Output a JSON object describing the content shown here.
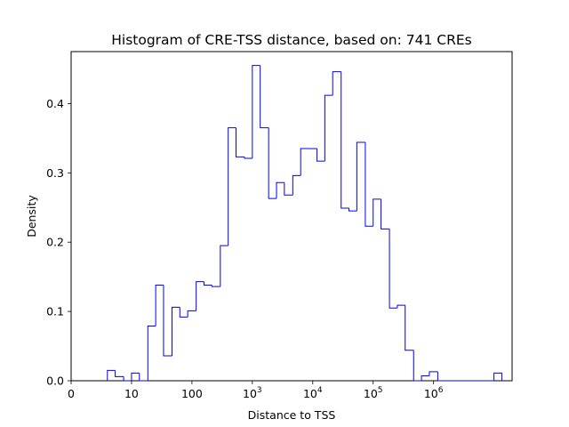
{
  "chart_data": {
    "type": "histogram-step",
    "title": "Histogram of CRE-TSS distance, based on: 741 CREs",
    "xlabel": "Distance to TSS",
    "ylabel": "Density",
    "x_scale": "log10(distance+1)",
    "xlim": [
      0,
      7.3
    ],
    "ylim": [
      0,
      0.475
    ],
    "x_ticks": [
      {
        "label": "0",
        "value": 0
      },
      {
        "label": "10",
        "value": 1
      },
      {
        "label": "100",
        "value": 2
      },
      {
        "label": "10",
        "sup": "3",
        "value": 3
      },
      {
        "label": "10",
        "sup": "4",
        "value": 4
      },
      {
        "label": "10",
        "sup": "5",
        "value": 5
      },
      {
        "label": "10",
        "sup": "6",
        "value": 6
      }
    ],
    "y_ticks": [
      {
        "label": "0.0",
        "value": 0.0
      },
      {
        "label": "0.1",
        "value": 0.1
      },
      {
        "label": "0.2",
        "value": 0.2
      },
      {
        "label": "0.3",
        "value": 0.3
      },
      {
        "label": "0.4",
        "value": 0.4
      }
    ],
    "bin_edges": [
      0.6,
      0.73,
      0.87,
      1.0,
      1.13,
      1.27,
      1.4,
      1.53,
      1.67,
      1.8,
      1.93,
      2.07,
      2.2,
      2.33,
      2.47,
      2.6,
      2.73,
      2.87,
      3.0,
      3.13,
      3.27,
      3.4,
      3.53,
      3.67,
      3.8,
      3.93,
      4.07,
      4.2,
      4.33,
      4.47,
      4.6,
      4.73,
      4.87,
      5.0,
      5.13,
      5.27,
      5.4,
      5.53,
      5.67,
      5.8,
      5.93,
      6.07,
      6.2,
      6.33,
      6.47,
      6.6,
      6.73,
      6.87,
      7.0,
      7.13
    ],
    "densities": [
      0.015,
      0.006,
      0.0,
      0.011,
      0.0,
      0.079,
      0.138,
      0.036,
      0.106,
      0.092,
      0.101,
      0.143,
      0.138,
      0.136,
      0.195,
      0.365,
      0.323,
      0.321,
      0.455,
      0.365,
      0.263,
      0.286,
      0.268,
      0.296,
      0.335,
      0.335,
      0.317,
      0.412,
      0.446,
      0.249,
      0.245,
      0.344,
      0.223,
      0.262,
      0.219,
      0.105,
      0.109,
      0.044,
      0.0,
      0.007,
      0.013,
      0.0,
      0.0,
      0.0,
      0.0,
      0.0,
      0.0,
      0.0,
      0.011
    ],
    "color": "#0000ff",
    "grid": false
  }
}
